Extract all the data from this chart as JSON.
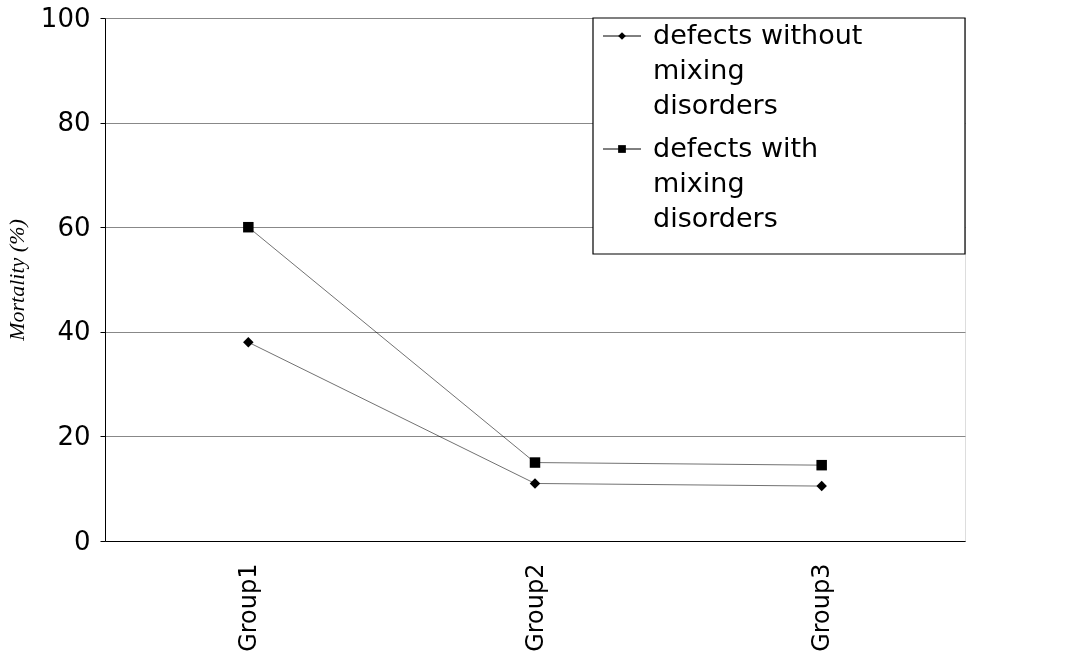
{
  "chart_data": {
    "type": "line",
    "ylabel": "Mortality (%)",
    "categories": [
      "Group1",
      "Group2",
      "Group3"
    ],
    "series": [
      {
        "name": "defects without mixing disorders",
        "color": "#000000",
        "marker": "diamond",
        "values": [
          38,
          11,
          10.5
        ]
      },
      {
        "name": "defects with mixing disorders",
        "color": "#000000",
        "marker": "square",
        "values": [
          60,
          15,
          14.5
        ]
      }
    ],
    "ylim": [
      0,
      100
    ],
    "yticks": [
      0,
      20,
      40,
      60,
      80,
      100
    ],
    "grid": "y",
    "legend": "top right"
  }
}
